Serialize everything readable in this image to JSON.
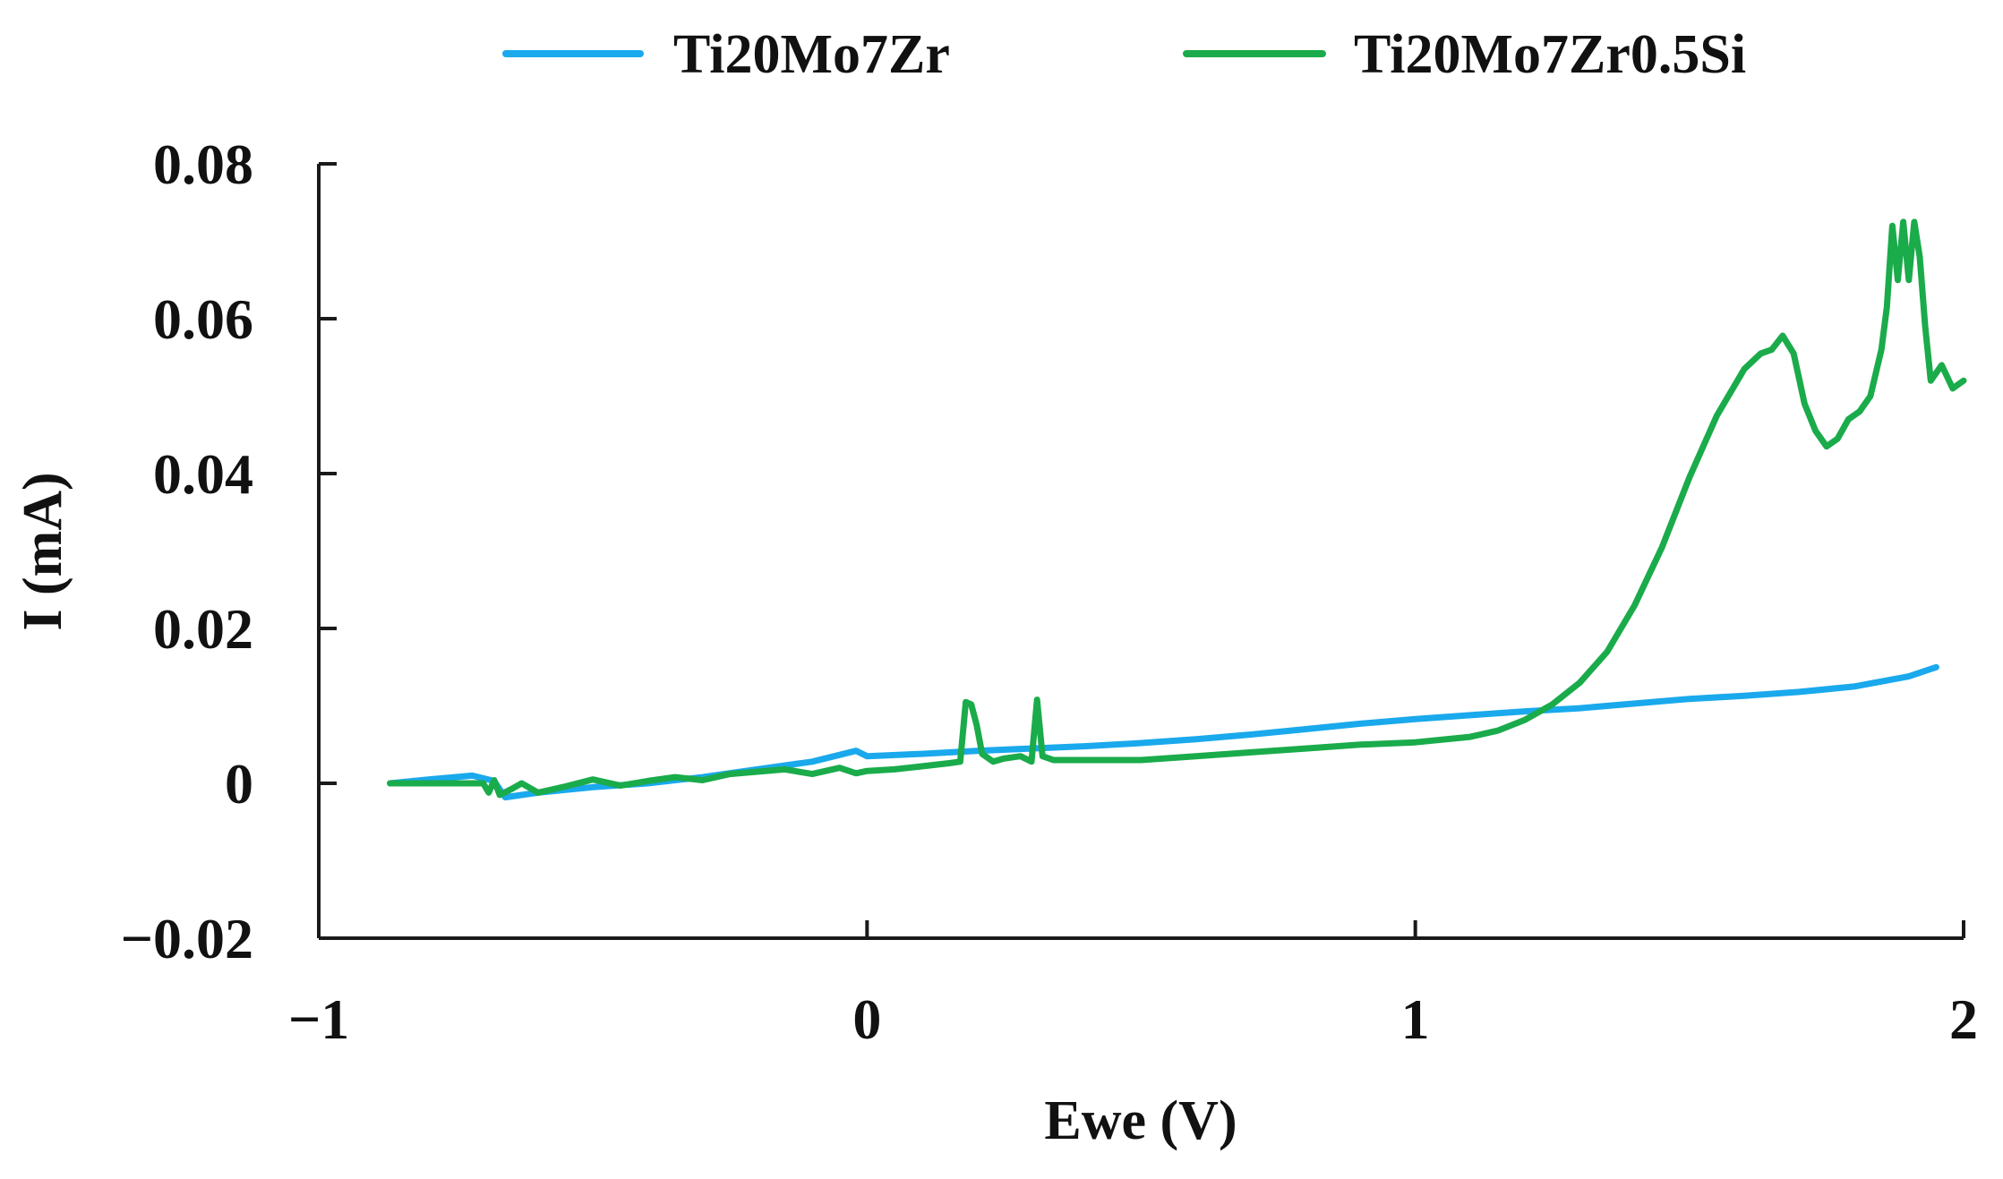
{
  "chart_data": {
    "type": "line",
    "title": "",
    "xlabel": "Ewe (V)",
    "ylabel": "I (mA)",
    "xlim": [
      -1,
      2
    ],
    "ylim": [
      -0.02,
      0.08
    ],
    "xticks": [
      -1,
      0,
      1,
      2
    ],
    "xtick_labels": [
      "−1",
      "0",
      "1",
      "2"
    ],
    "yticks": [
      -0.02,
      0,
      0.02,
      0.04,
      0.06,
      0.08
    ],
    "ytick_labels": [
      "−0.02",
      "0",
      "0.02",
      "0.04",
      "0.06",
      "0.08"
    ],
    "grid": false,
    "legend_position": "top-center",
    "series": [
      {
        "name": "Ti20Mo7Zr",
        "color": "#1aa9ec",
        "x": [
          -0.87,
          -0.8,
          -0.72,
          -0.68,
          -0.66,
          -0.6,
          -0.5,
          -0.4,
          -0.3,
          -0.2,
          -0.1,
          -0.02,
          0.0,
          0.1,
          0.2,
          0.3,
          0.4,
          0.5,
          0.6,
          0.7,
          0.8,
          0.9,
          1.0,
          1.1,
          1.2,
          1.3,
          1.4,
          1.5,
          1.6,
          1.7,
          1.8,
          1.9,
          1.95
        ],
        "y": [
          0.0,
          0.0005,
          0.001,
          0.0003,
          -0.0018,
          -0.0012,
          -0.0005,
          0.0,
          0.0008,
          0.0018,
          0.0028,
          0.0042,
          0.0035,
          0.0038,
          0.0042,
          0.0045,
          0.0048,
          0.0052,
          0.0057,
          0.0063,
          0.007,
          0.0077,
          0.0083,
          0.0088,
          0.0093,
          0.0097,
          0.0103,
          0.0109,
          0.0113,
          0.0118,
          0.0125,
          0.0138,
          0.015
        ]
      },
      {
        "name": "Ti20Mo7Zr0.5Si",
        "color": "#1aab4b",
        "x": [
          -0.87,
          -0.8,
          -0.7,
          -0.69,
          -0.68,
          -0.67,
          -0.65,
          -0.63,
          -0.6,
          -0.55,
          -0.5,
          -0.45,
          -0.4,
          -0.35,
          -0.3,
          -0.25,
          -0.2,
          -0.15,
          -0.1,
          -0.05,
          -0.02,
          0.0,
          0.05,
          0.1,
          0.15,
          0.17,
          0.18,
          0.19,
          0.2,
          0.21,
          0.23,
          0.25,
          0.28,
          0.3,
          0.31,
          0.32,
          0.34,
          0.4,
          0.5,
          0.6,
          0.7,
          0.8,
          0.9,
          1.0,
          1.1,
          1.15,
          1.2,
          1.25,
          1.3,
          1.35,
          1.4,
          1.45,
          1.5,
          1.55,
          1.6,
          1.63,
          1.65,
          1.67,
          1.69,
          1.71,
          1.73,
          1.75,
          1.77,
          1.79,
          1.81,
          1.83,
          1.85,
          1.86,
          1.87,
          1.88,
          1.89,
          1.9,
          1.91,
          1.92,
          1.93,
          1.94,
          1.96,
          1.98,
          2.0
        ],
        "y": [
          0.0,
          0.0,
          0.0,
          -0.0012,
          0.0004,
          -0.0015,
          -0.0008,
          0.0,
          -0.0012,
          -0.0004,
          0.0005,
          -0.0003,
          0.0003,
          0.0008,
          0.0004,
          0.0012,
          0.0015,
          0.0018,
          0.0012,
          0.002,
          0.0013,
          0.0016,
          0.0018,
          0.0022,
          0.0026,
          0.0028,
          0.0105,
          0.0102,
          0.0075,
          0.0038,
          0.0028,
          0.0032,
          0.0035,
          0.0028,
          0.0108,
          0.0035,
          0.003,
          0.003,
          0.003,
          0.0035,
          0.004,
          0.0045,
          0.005,
          0.0053,
          0.006,
          0.0068,
          0.0082,
          0.0102,
          0.013,
          0.017,
          0.023,
          0.0305,
          0.0395,
          0.0475,
          0.0535,
          0.0555,
          0.056,
          0.0578,
          0.0555,
          0.049,
          0.0455,
          0.0435,
          0.0445,
          0.047,
          0.048,
          0.05,
          0.056,
          0.0615,
          0.072,
          0.065,
          0.0725,
          0.065,
          0.0725,
          0.068,
          0.059,
          0.052,
          0.054,
          0.051,
          0.052
        ]
      }
    ]
  }
}
